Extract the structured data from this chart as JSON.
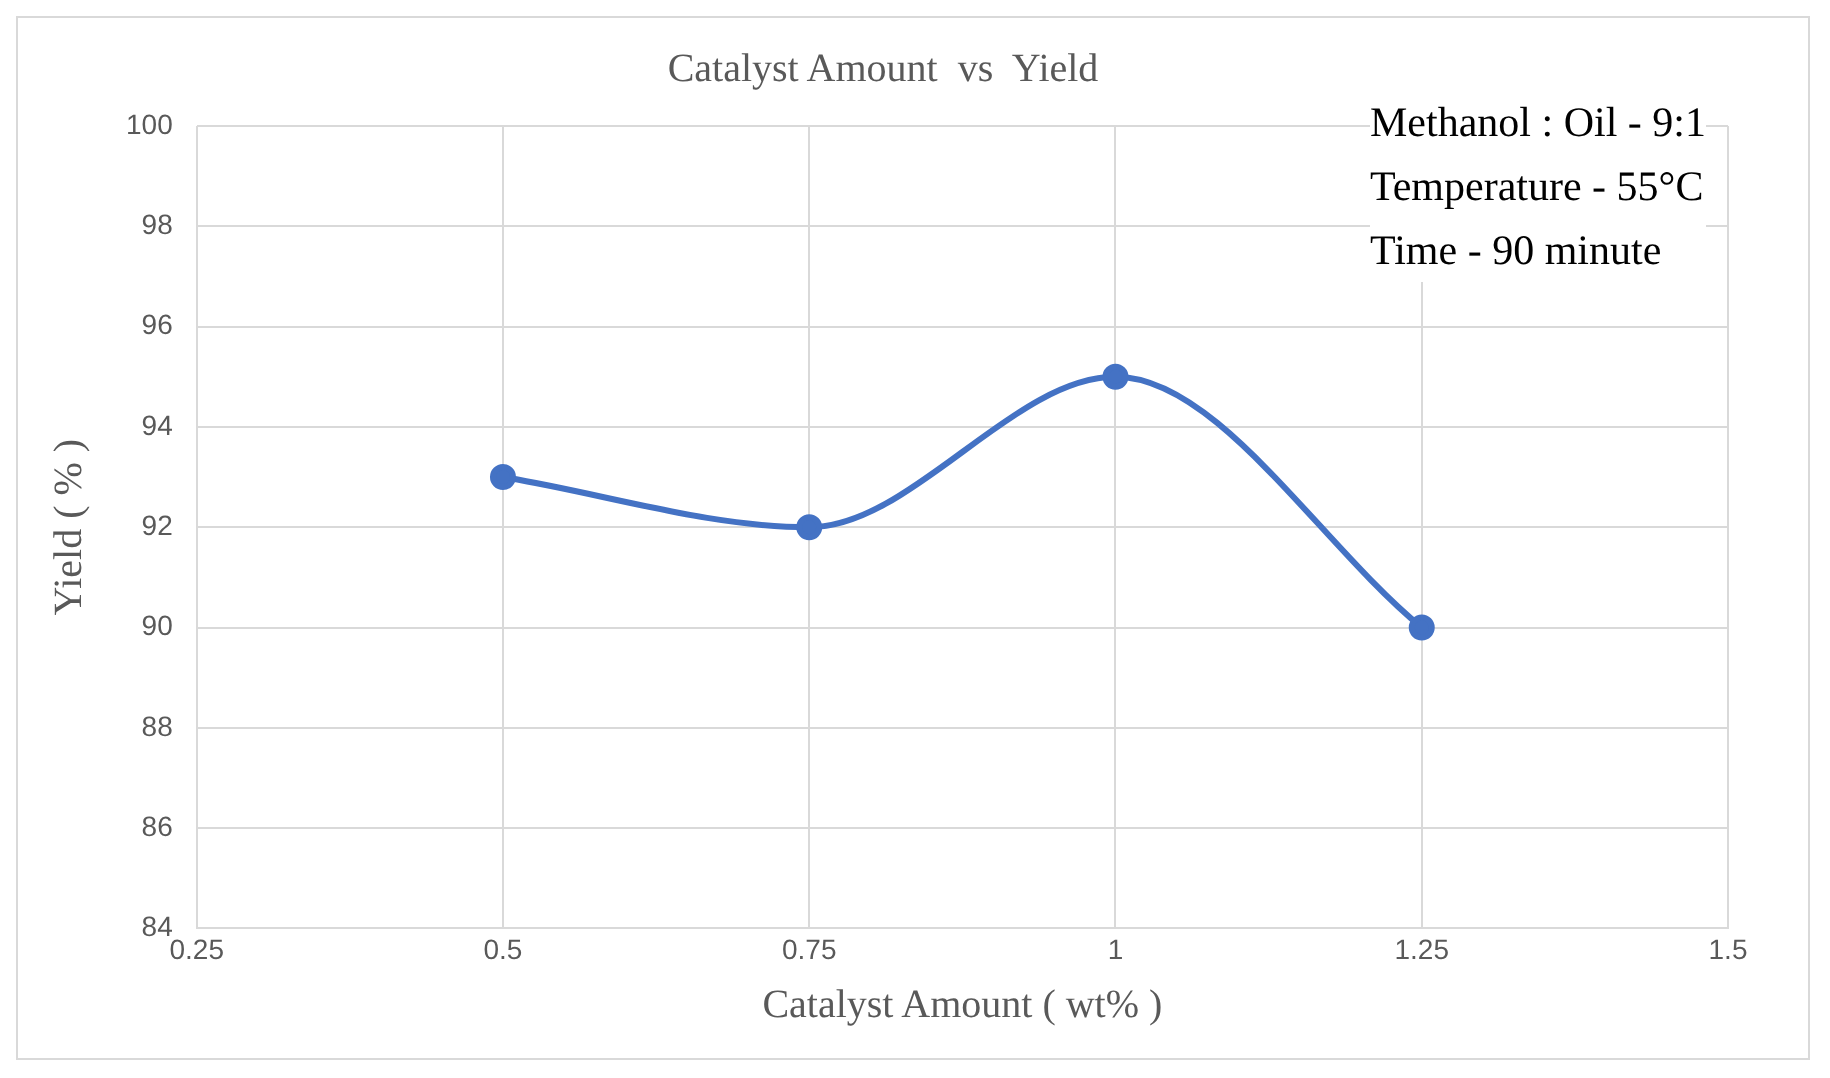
{
  "chart_data": {
    "type": "line",
    "title": "Catalyst Amount  vs  Yield",
    "xlabel": "Catalyst Amount ( wt% )",
    "ylabel": "Yield ( % )",
    "annotations": [
      "Methanol : Oil - 9:1",
      "Temperature - 55°C",
      "Time - 90 minute"
    ],
    "x": [
      0.5,
      0.75,
      1,
      1.25
    ],
    "series": [
      {
        "color": "#4472c4",
        "values": [
          93,
          92,
          95,
          90
        ]
      }
    ],
    "xlim": [
      0.25,
      1.5
    ],
    "xticks": [
      0.25,
      0.5,
      0.75,
      1,
      1.25,
      1.5
    ],
    "ylim": [
      84,
      100
    ],
    "yticks": [
      84,
      86,
      88,
      90,
      92,
      94,
      96,
      98,
      100
    ],
    "grid": true,
    "legend": false,
    "marker": "circle",
    "line_style": "solid"
  }
}
